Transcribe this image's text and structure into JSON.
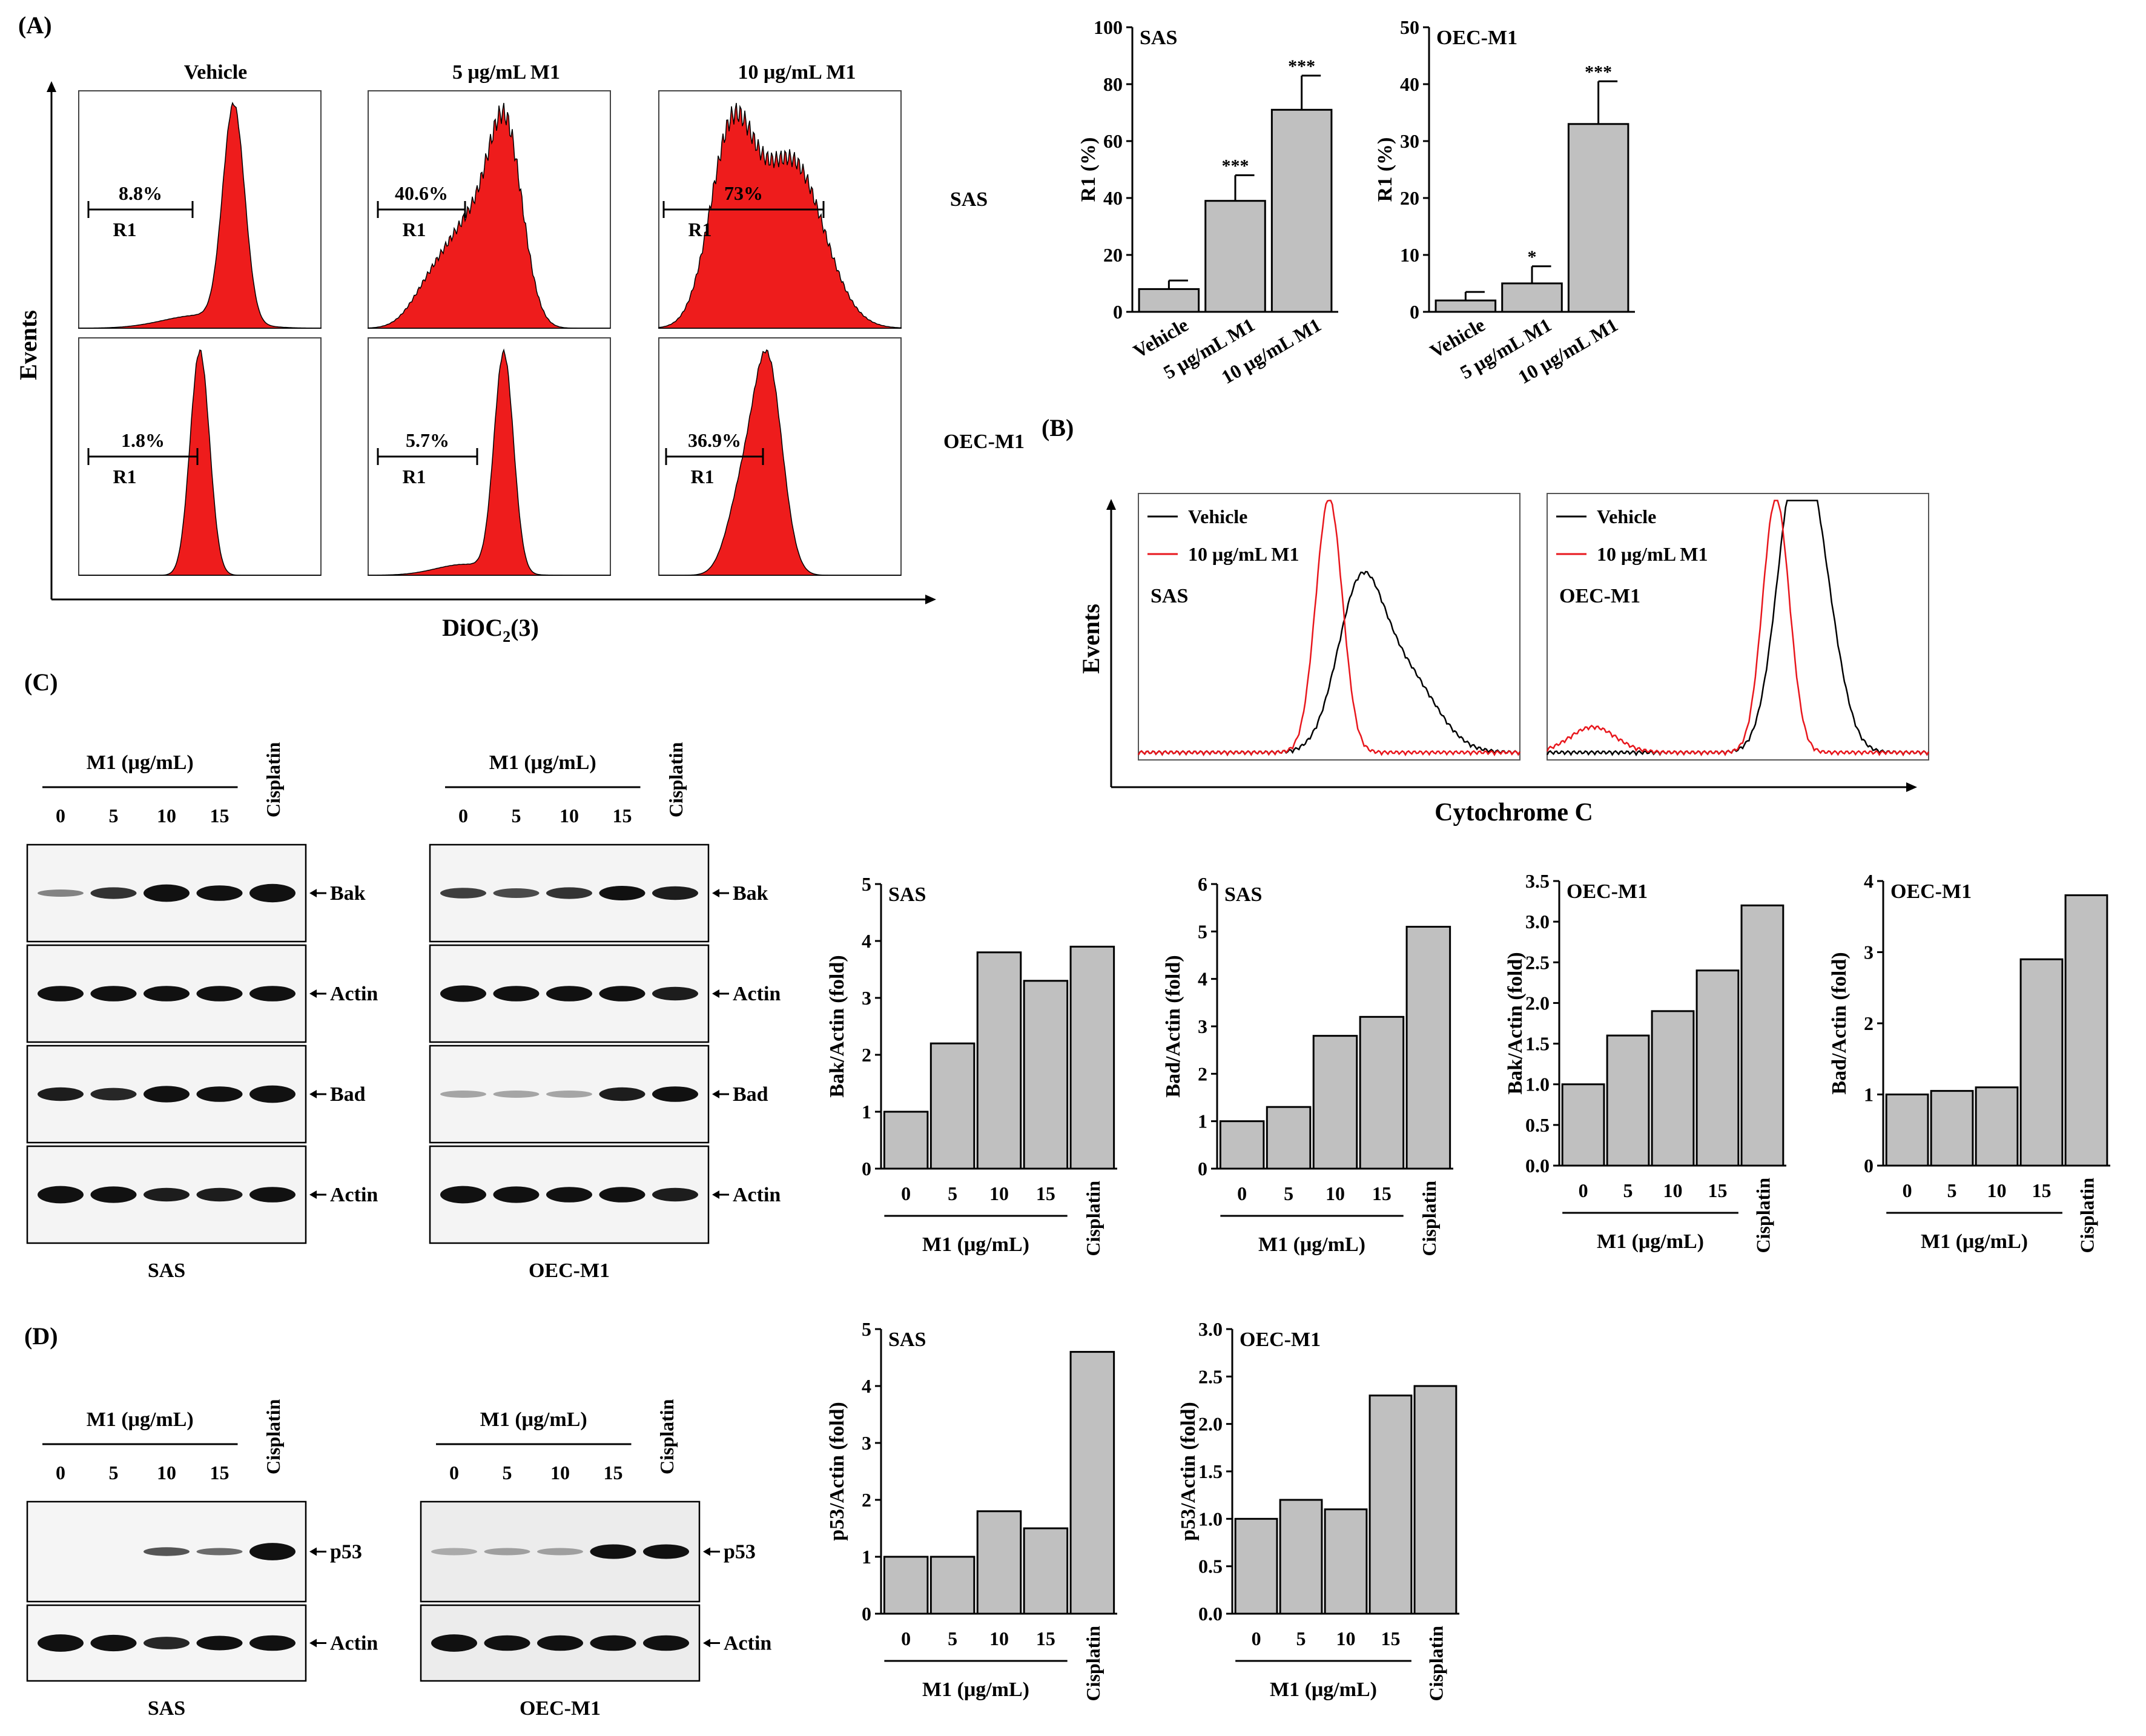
{
  "panel_labels": {
    "A": "(A)",
    "B": "(B)",
    "C": "(C)",
    "D": "(D)"
  },
  "panel_a": {
    "columns": [
      "Vehicle",
      "5 μg/mL M1",
      "10 μg/mL M1"
    ],
    "rows": [
      "SAS",
      "OEC-M1"
    ],
    "y_axis_title": "Events",
    "x_axis_title": "DiOC2(3)",
    "x_axis_title_parts": {
      "main": "DiOC",
      "sub": "2",
      "tail": "(3)"
    },
    "gate_label": "R1",
    "histograms": [
      {
        "row": "SAS",
        "condition": "Vehicle",
        "r1_percent": "8.8%"
      },
      {
        "row": "SAS",
        "condition": "5 μg/mL M1",
        "r1_percent": "40.6%"
      },
      {
        "row": "SAS",
        "condition": "10 μg/mL M1",
        "r1_percent": "73%"
      },
      {
        "row": "OEC-M1",
        "condition": "Vehicle",
        "r1_percent": "1.8%"
      },
      {
        "row": "OEC-M1",
        "condition": "5 μg/mL M1",
        "r1_percent": "5.7%"
      },
      {
        "row": "OEC-M1",
        "condition": "10 μg/mL M1",
        "r1_percent": "36.9%"
      }
    ]
  },
  "panel_b": {
    "y_axis_title": "Events",
    "x_axis_title": "Cytochrome C",
    "legend": [
      {
        "label": "Vehicle",
        "color": "#000000"
      },
      {
        "label": "10 μg/mL M1",
        "color": "#e8161c"
      }
    ],
    "cell_lines": [
      "SAS",
      "OEC-M1"
    ]
  },
  "blots_c": [
    {
      "cell": "SAS",
      "group_label": "M1 (μg/mL)",
      "lanes": [
        "0",
        "5",
        "10",
        "15"
      ],
      "extra_lane": "Cisplatin",
      "bands": [
        "Bak",
        "Actin",
        "Bad",
        "Actin"
      ]
    },
    {
      "cell": "OEC-M1",
      "group_label": "M1 (μg/mL)",
      "lanes": [
        "0",
        "5",
        "10",
        "15"
      ],
      "extra_lane": "Cisplatin",
      "bands": [
        "Bak",
        "Actin",
        "Bad",
        "Actin"
      ]
    }
  ],
  "blots_d": [
    {
      "cell": "SAS",
      "group_label": "M1 (μg/mL)",
      "lanes": [
        "0",
        "5",
        "10",
        "15"
      ],
      "extra_lane": "Cisplatin",
      "bands": [
        "p53",
        "Actin"
      ]
    },
    {
      "cell": "OEC-M1",
      "group_label": "M1 (μg/mL)",
      "lanes": [
        "0",
        "5",
        "10",
        "15"
      ],
      "extra_lane": "Cisplatin",
      "bands": [
        "p53",
        "Actin"
      ]
    }
  ],
  "chart_data": [
    {
      "id": "r1-sas",
      "type": "bar",
      "title": "SAS",
      "ylabel": "R1 (%)",
      "categories": [
        "Vehicle",
        "5 μg/mL M1",
        "10 μg/mL M1"
      ],
      "values": [
        8,
        39,
        71
      ],
      "errors": [
        3,
        9,
        12
      ],
      "significance": [
        "",
        "***",
        "***"
      ],
      "ylim": [
        0,
        100
      ],
      "yticks": [
        "0",
        "20",
        "40",
        "60",
        "80",
        "100"
      ]
    },
    {
      "id": "r1-oec",
      "type": "bar",
      "title": "OEC-M1",
      "ylabel": "R1 (%)",
      "categories": [
        "Vehicle",
        "5 μg/mL M1",
        "10 μg/mL M1"
      ],
      "values": [
        2,
        5,
        33
      ],
      "errors": [
        1.5,
        3,
        7.5
      ],
      "significance": [
        "",
        "*",
        "***"
      ],
      "ylim": [
        0,
        50
      ],
      "yticks": [
        "0",
        "10",
        "20",
        "30",
        "40",
        "50"
      ]
    },
    {
      "id": "bak-sas",
      "type": "bar",
      "title": "SAS",
      "ylabel": "Bak/Actin (fold)",
      "categories": [
        "0",
        "5",
        "10",
        "15",
        "Cisplatin"
      ],
      "group_label": "M1 (μg/mL)",
      "values": [
        1.0,
        2.2,
        3.8,
        3.3,
        3.9
      ],
      "ylim": [
        0,
        5
      ],
      "yticks": [
        "0",
        "1",
        "2",
        "3",
        "4",
        "5"
      ]
    },
    {
      "id": "bad-sas",
      "type": "bar",
      "title": "SAS",
      "ylabel": "Bad/Actin (fold)",
      "categories": [
        "0",
        "5",
        "10",
        "15",
        "Cisplatin"
      ],
      "group_label": "M1 (μg/mL)",
      "values": [
        1.0,
        1.3,
        2.8,
        3.2,
        5.1
      ],
      "ylim": [
        0,
        6
      ],
      "yticks": [
        "0",
        "1",
        "2",
        "3",
        "4",
        "5",
        "6"
      ]
    },
    {
      "id": "bak-oec",
      "type": "bar",
      "title": "OEC-M1",
      "ylabel": "Bak/Actin (fold)",
      "categories": [
        "0",
        "5",
        "10",
        "15",
        "Cisplatin"
      ],
      "group_label": "M1 (μg/mL)",
      "values": [
        1.0,
        1.6,
        1.9,
        2.4,
        3.2
      ],
      "ylim": [
        0,
        3.5
      ],
      "yticks": [
        "0.0",
        "0.5",
        "1.0",
        "1.5",
        "2.0",
        "2.5",
        "3.0",
        "3.5"
      ]
    },
    {
      "id": "bad-oec",
      "type": "bar",
      "title": "OEC-M1",
      "ylabel": "Bad/Actin (fold)",
      "categories": [
        "0",
        "5",
        "10",
        "15",
        "Cisplatin"
      ],
      "group_label": "M1 (μg/mL)",
      "values": [
        1.0,
        1.05,
        1.1,
        2.9,
        3.8
      ],
      "ylim": [
        0,
        4
      ],
      "yticks": [
        "0",
        "1",
        "2",
        "3",
        "4"
      ]
    },
    {
      "id": "p53-sas",
      "type": "bar",
      "title": "SAS",
      "ylabel": "p53/Actin (fold)",
      "categories": [
        "0",
        "5",
        "10",
        "15",
        "Cisplatin"
      ],
      "group_label": "M1 (μg/mL)",
      "values": [
        1.0,
        1.0,
        1.8,
        1.5,
        4.6
      ],
      "ylim": [
        0,
        5
      ],
      "yticks": [
        "0",
        "1",
        "2",
        "3",
        "4",
        "5"
      ]
    },
    {
      "id": "p53-oec",
      "type": "bar",
      "title": "OEC-M1",
      "ylabel": "p53/Actin (fold)",
      "categories": [
        "0",
        "5",
        "10",
        "15",
        "Cisplatin"
      ],
      "group_label": "M1 (μg/mL)",
      "values": [
        1.0,
        1.2,
        1.1,
        2.3,
        2.4
      ],
      "ylim": [
        0,
        3.0
      ],
      "yticks": [
        "0.0",
        "0.5",
        "1.0",
        "1.5",
        "2.0",
        "2.5",
        "3.0"
      ]
    }
  ]
}
